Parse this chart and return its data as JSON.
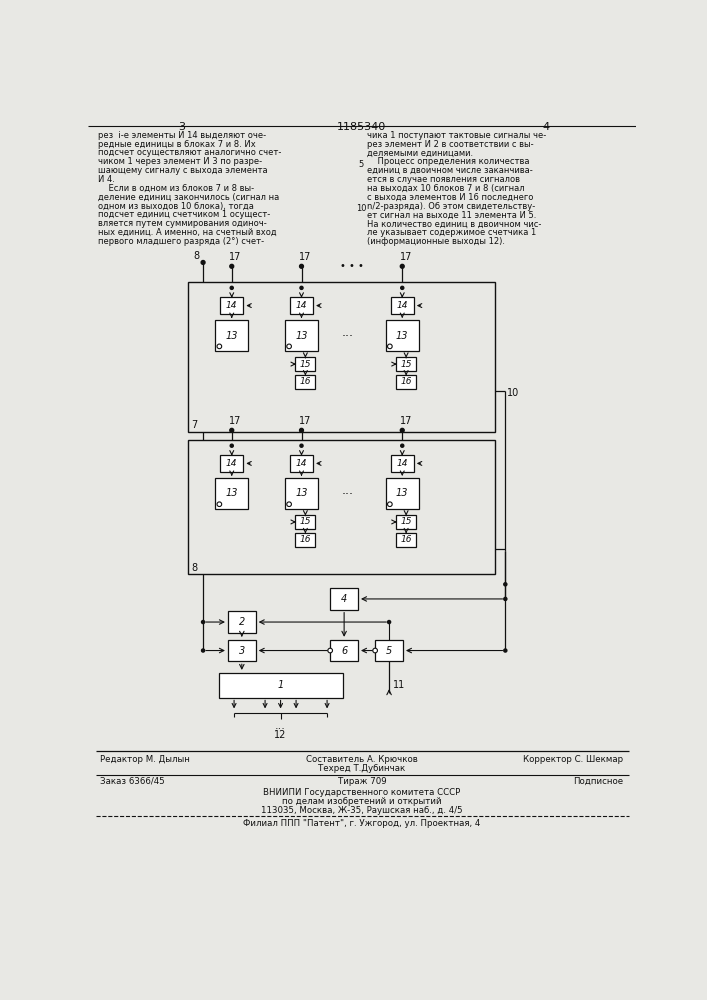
{
  "title": "1185340",
  "page_left": "3",
  "page_right": "4",
  "text_left_lines": [
    "рез  i-е элементы И 14 выделяют оче-",
    "редные единицы в блоках 7 и 8. Их",
    "подсчет осуществляют аналогично счет-",
    "чиком 1 через элемент И 3 по разре-",
    "шающему сигналу с выхода элемента",
    "И 4.",
    "    Если в одном из блоков 7 и 8 вы-",
    "деление единиц закончилось (сигнал на",
    "одном из выходов 10 блока), тогда",
    "подсчет единиц счетчиком 1 осущест-",
    "вляется путем суммирования одиноч-",
    "ных единиц. А именно, на счетный вход",
    "первого младшего разряда (2°) счет-"
  ],
  "text_right_lines": [
    "чика 1 поступают тактовые сигналы че-",
    "рез элемент И 2 в соответствии с вы-",
    "деляемыми единицами.",
    "    Процесс определения количества",
    "единиц в двоичном числе заканчива-",
    "ется в случае появления сигналов",
    "на выходах 10 блоков 7 и 8 (сигнал",
    "с выхода элементов И 16 последнего",
    "n/2-разряда). Об этом свидетельству-",
    "ет сигнал на выходе 11 элемента И 5.",
    "На количество единиц в двоичном чис-",
    "ле указывает содержимое счетчика 1",
    "(информационные выходы 12)."
  ],
  "footnote_editor": "Редактор М. Дылын",
  "footnote_composer": "Составитель А. Крючков",
  "footnote_corrector": "Корректор С. Шекмар",
  "footnote_techred": "Техред Т.Дубинчак",
  "footnote_order": "Заказ 6366/45",
  "footnote_tirazh": "Тираж 709",
  "footnote_podpisnoe": "Подписное",
  "footnote_vniip1": "ВНИИПИ Государственного комитета СССР",
  "footnote_vniip2": "по делам изобретений и открытий",
  "footnote_vniip3": "113035, Москва, Ж-35, Раушская наб., д. 4/5",
  "footnote_filial": "Филиал ППП \"Патент\", г. Ужгород, ул. Проектная, 4",
  "bg_color": "#e8e8e4",
  "line_color": "#111111"
}
